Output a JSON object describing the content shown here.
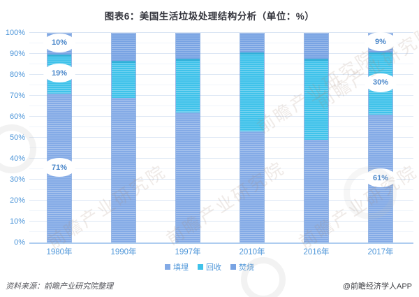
{
  "title": "图表6：美国生活垃圾处理结构分析（单位：%）",
  "chart_data": {
    "type": "bar",
    "stacked": true,
    "unit": "%",
    "title": "图表6：美国生活垃圾处理结构分析（单位：%）",
    "categories": [
      "1980年",
      "1990年",
      "1997年",
      "2010年",
      "2016年",
      "2017年"
    ],
    "series": [
      {
        "name": "填埋",
        "key": "landfill",
        "color": "#83AAE6",
        "values": [
          71,
          69,
          62,
          53,
          49,
          61
        ]
      },
      {
        "name": "回收",
        "key": "recycle",
        "color": "#3FC2EA",
        "values": [
          19,
          18,
          26,
          38,
          39,
          30
        ]
      },
      {
        "name": "焚烧",
        "key": "incinerate",
        "color": "#78A3E3",
        "values": [
          10,
          13,
          12,
          9,
          12,
          9
        ]
      }
    ],
    "data_labels": {
      "1980年": [
        "71%",
        "19%",
        "10%"
      ],
      "2017年": [
        "61%",
        "30%",
        "9%"
      ]
    },
    "ylim": [
      0,
      100
    ],
    "yticks": [
      "0%",
      "10%",
      "20%",
      "30%",
      "40%",
      "50%",
      "60%",
      "70%",
      "80%",
      "90%",
      "100%"
    ],
    "grid": "horizontal",
    "legend_position": "bottom",
    "axis_label_color": "#4E96D9"
  },
  "footer": {
    "source": "资料来源：前瞻产业研究院整理",
    "credit": "@前瞻经济学人APP"
  },
  "watermark": {
    "text": "前瞻产业研究院"
  }
}
